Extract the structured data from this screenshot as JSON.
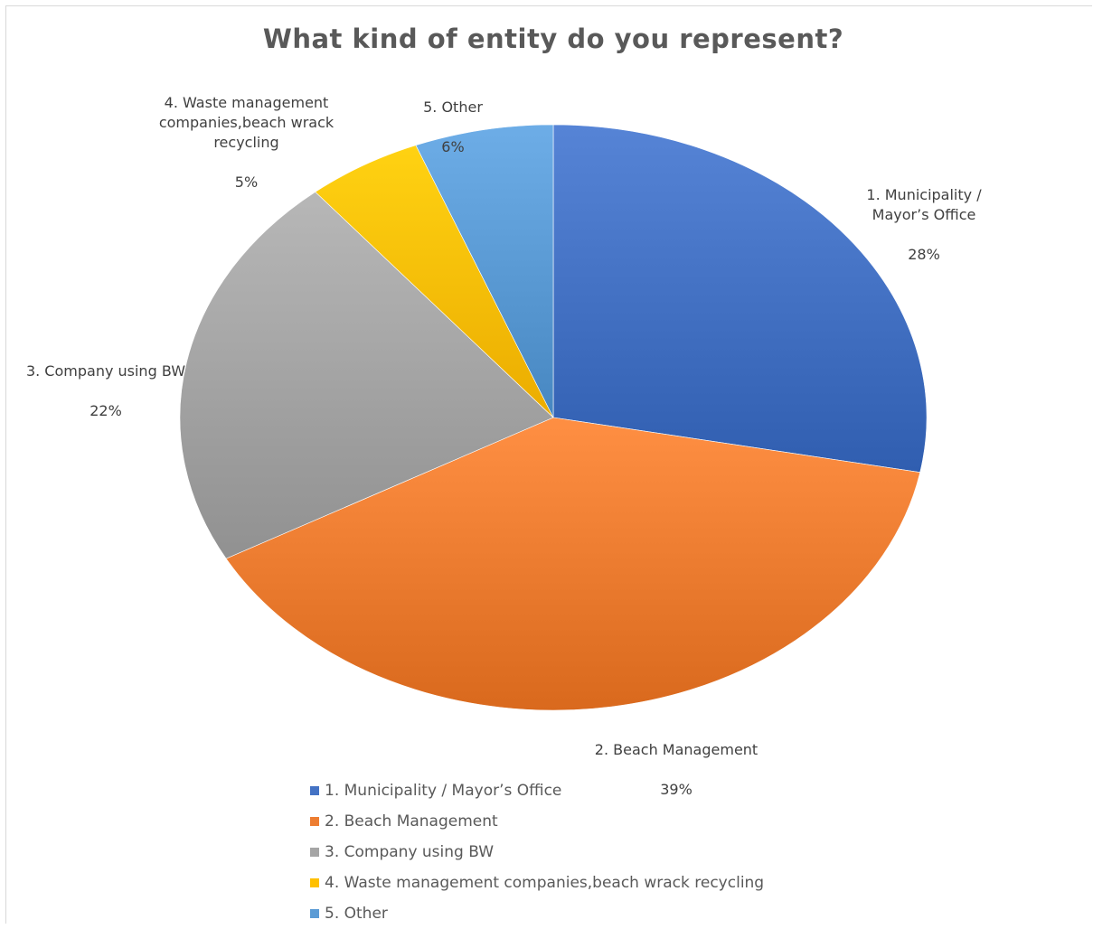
{
  "chart_data": {
    "type": "pie",
    "title": "What kind of entity do you represent?",
    "categories": [
      "1. Municipality / Mayor’s Office",
      "2. Beach Management",
      "3. Company using BW",
      "4. Waste management companies,beach wrack recycling",
      "5. Other"
    ],
    "values": [
      28,
      39,
      22,
      5,
      6
    ],
    "value_labels": [
      "28%",
      "39%",
      "22%",
      "5%",
      "6%"
    ],
    "colors": [
      "#4472c4",
      "#ed7d31",
      "#a5a5a5",
      "#ffc000",
      "#5b9bd5"
    ],
    "legend_position": "bottom"
  },
  "slice_labels": [
    {
      "name": "1. Municipality /\nMayor’s Office",
      "pct": "28%"
    },
    {
      "name": "2. Beach Management",
      "pct": "39%"
    },
    {
      "name": "3. Company using BW",
      "pct": "22%"
    },
    {
      "name": "4. Waste management\ncompanies,beach wrack\nrecycling",
      "pct": "5%"
    },
    {
      "name": "5. Other",
      "pct": "6%"
    }
  ]
}
